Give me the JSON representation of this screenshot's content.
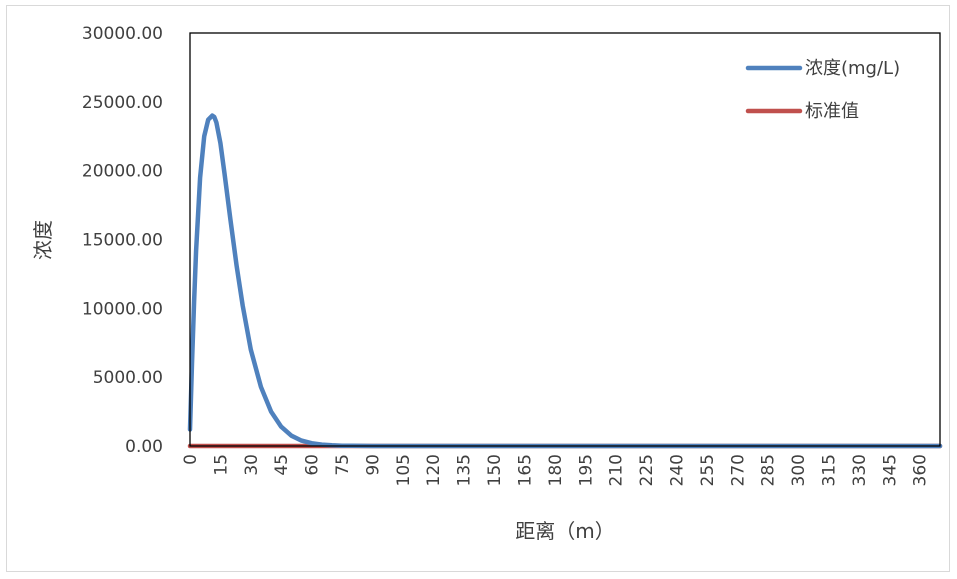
{
  "chart_data": {
    "type": "line",
    "title": "",
    "xlabel": "距离（m）",
    "ylabel": "浓度",
    "xlim": [
      0,
      370
    ],
    "ylim": [
      0,
      30000
    ],
    "y_ticks": [
      "0.00",
      "5000.00",
      "10000.00",
      "15000.00",
      "20000.00",
      "25000.00",
      "30000.00"
    ],
    "x_ticks": [
      "0",
      "15",
      "30",
      "45",
      "60",
      "75",
      "90",
      "105",
      "120",
      "135",
      "150",
      "165",
      "180",
      "195",
      "210",
      "225",
      "240",
      "255",
      "270",
      "285",
      "300",
      "315",
      "330",
      "345",
      "360"
    ],
    "grid": false,
    "legend_position": "top-right",
    "series": [
      {
        "name": "浓度(mg/L)",
        "color": "#4f81bd",
        "x": [
          0,
          1,
          2,
          3,
          5,
          7,
          9,
          11,
          12,
          13,
          15,
          17,
          20,
          23,
          26,
          30,
          35,
          40,
          45,
          50,
          55,
          60,
          65,
          70,
          75,
          80,
          85,
          90,
          100,
          110,
          120,
          150,
          200,
          250,
          300,
          370
        ],
        "y": [
          1200,
          6000,
          10500,
          14200,
          19500,
          22500,
          23700,
          24000,
          23900,
          23500,
          22000,
          19800,
          16400,
          13100,
          10200,
          7000,
          4300,
          2500,
          1400,
          750,
          390,
          200,
          100,
          50,
          25,
          12,
          6,
          3,
          1,
          0,
          0,
          0,
          0,
          0,
          0,
          0
        ]
      },
      {
        "name": "标准值",
        "color": "#c0504d",
        "x": [
          0,
          370
        ],
        "y": [
          0,
          0
        ]
      }
    ]
  }
}
